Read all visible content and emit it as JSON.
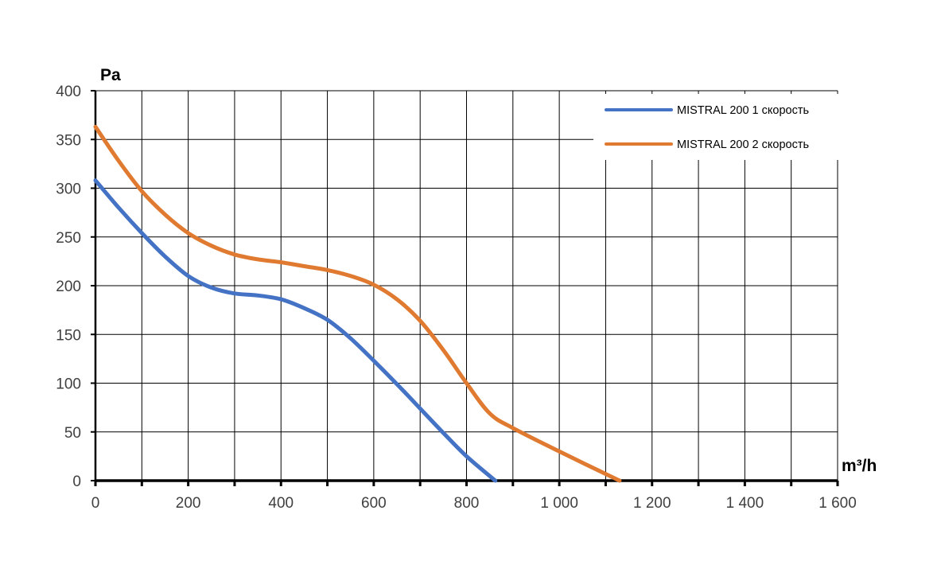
{
  "chart_data": {
    "type": "line",
    "title": "",
    "xlabel": "m³/h",
    "ylabel": "Pa",
    "xlim": [
      0,
      1600
    ],
    "ylim": [
      0,
      400
    ],
    "x_ticks": [
      0,
      200,
      400,
      600,
      800,
      1000,
      1200,
      1400,
      1600
    ],
    "x_tick_labels": [
      "0",
      "200",
      "400",
      "600",
      "800",
      "1 000",
      "1 200",
      "1 400",
      "1 600"
    ],
    "x_minor_step": 100,
    "y_ticks": [
      0,
      50,
      100,
      150,
      200,
      250,
      300,
      350,
      400
    ],
    "y_tick_labels": [
      "0",
      "50",
      "100",
      "150",
      "200",
      "250",
      "300",
      "350",
      "400"
    ],
    "grid": true,
    "legend_position": "top-right",
    "series": [
      {
        "name": "MISTRAL 200 1 скорость",
        "color": "#4472c4",
        "x": [
          0,
          50,
          100,
          150,
          200,
          250,
          300,
          350,
          400,
          450,
          500,
          550,
          600,
          650,
          700,
          750,
          800,
          862
        ],
        "y": [
          308,
          280,
          254,
          230,
          210,
          198,
          192,
          190,
          186,
          177,
          165,
          146,
          123,
          99,
          74,
          49,
          25,
          0
        ]
      },
      {
        "name": "MISTRAL 200 2 скорость",
        "color": "#e07a30",
        "x": [
          0,
          50,
          100,
          150,
          200,
          250,
          300,
          350,
          400,
          450,
          500,
          550,
          600,
          650,
          700,
          750,
          800,
          850,
          900,
          1000,
          1130
        ],
        "y": [
          363,
          328,
          297,
          273,
          254,
          241,
          232,
          227,
          224,
          220,
          216,
          210,
          201,
          186,
          164,
          134,
          100,
          69,
          54,
          30,
          0
        ]
      }
    ]
  }
}
